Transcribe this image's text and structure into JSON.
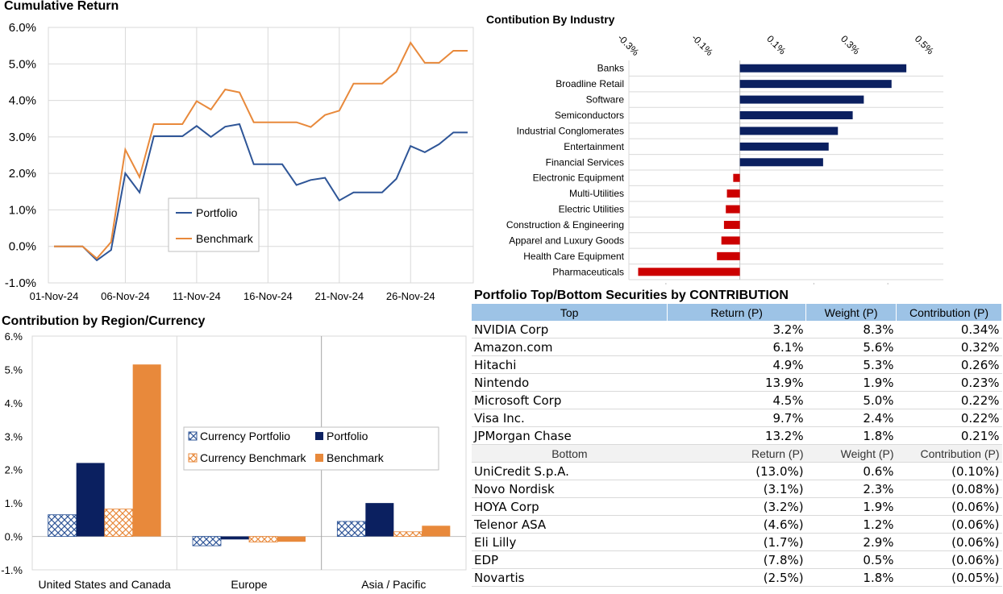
{
  "cumulative": {
    "title": "Cumulative Return",
    "chart_data": {
      "type": "line",
      "title": "Cumulative Return",
      "ylim": [
        -1.0,
        6.0
      ],
      "y_ticks": [
        "6.0%",
        "5.0%",
        "4.0%",
        "3.0%",
        "2.0%",
        "1.0%",
        "0.0%",
        "-1.0%"
      ],
      "x_ticks": [
        "01-Nov-24",
        "06-Nov-24",
        "11-Nov-24",
        "16-Nov-24",
        "21-Nov-24",
        "26-Nov-24"
      ],
      "legend_position": "center-left",
      "grid": true,
      "series": [
        {
          "name": "Portfolio",
          "color": "#2e5597",
          "values": [
            0.0,
            0.0,
            0.0,
            -0.38,
            -0.1,
            2.0,
            1.48,
            3.02,
            3.02,
            3.02,
            3.3,
            3.0,
            3.28,
            3.35,
            2.25,
            2.25,
            2.25,
            1.68,
            1.82,
            1.88,
            1.26,
            1.48,
            1.48,
            1.48,
            1.85,
            2.75,
            2.58,
            2.8,
            3.12,
            3.12
          ]
        },
        {
          "name": "Benchmark",
          "color": "#e8893b",
          "values": [
            0.0,
            0.0,
            0.0,
            -0.33,
            0.12,
            2.65,
            1.9,
            3.35,
            3.35,
            3.35,
            3.98,
            3.75,
            4.3,
            4.22,
            3.4,
            3.4,
            3.4,
            3.4,
            3.27,
            3.6,
            3.72,
            4.46,
            4.46,
            4.46,
            4.78,
            5.58,
            5.03,
            5.03,
            5.36,
            5.36
          ]
        }
      ]
    }
  },
  "industry": {
    "title": "Contibution By Industry",
    "chart_data": {
      "type": "bar",
      "orientation": "horizontal",
      "xlim": [
        -0.3,
        0.55
      ],
      "x_ticks": [
        "-0.3%",
        "-0.1%",
        "0.1%",
        "0.3%",
        "0.5%"
      ],
      "categories": [
        "Banks",
        "Broadline Retail",
        "Software",
        "Semiconductors",
        "Industrial Conglomerates",
        "Entertainment",
        "Financial Services",
        "Electronic Equipment",
        "Multi-Utilities",
        "Electric Utilities",
        "Construction & Engineering",
        "Apparel and Luxury Goods",
        "Health Care Equipment",
        "Pharmaceuticals"
      ],
      "values": [
        0.45,
        0.41,
        0.335,
        0.305,
        0.265,
        0.24,
        0.225,
        -0.018,
        -0.035,
        -0.038,
        -0.043,
        -0.05,
        -0.062,
        -0.275
      ],
      "positive_color": "#0b2060",
      "negative_color": "#cc0000"
    }
  },
  "region": {
    "title": "Contribution by Region/Currency",
    "chart_data": {
      "type": "bar",
      "ylim": [
        -1.0,
        6.0
      ],
      "y_ticks": [
        "6.%",
        "5.%",
        "4.%",
        "3.%",
        "2.%",
        "1.%",
        "0.%",
        "-1.%"
      ],
      "categories": [
        "United States and Canada",
        "Europe",
        "Asia / Pacific"
      ],
      "legend_position": "center",
      "series": [
        {
          "name": "Currency Portfolio",
          "color": "#2e5597",
          "pattern": "crosshatch",
          "values": [
            0.65,
            -0.28,
            0.45
          ]
        },
        {
          "name": "Portfolio",
          "color": "#0b2060",
          "pattern": "solid",
          "values": [
            2.2,
            -0.09,
            1.0
          ]
        },
        {
          "name": "Currency Benchmark",
          "color": "#e8893b",
          "pattern": "crosshatch",
          "values": [
            0.82,
            -0.17,
            0.14
          ]
        },
        {
          "name": "Benchmark",
          "color": "#e8893b",
          "pattern": "solid",
          "values": [
            5.15,
            -0.16,
            0.32
          ]
        }
      ]
    }
  },
  "securities": {
    "title": "Portfolio Top/Bottom Securities by CONTRIBUTION",
    "top_header": [
      "Top",
      "Return (P)",
      "Weight (P)",
      "Contribution (P)"
    ],
    "top_rows": [
      [
        "NVIDIA Corp",
        "3.2%",
        "8.3%",
        "0.34%"
      ],
      [
        "Amazon.com",
        "6.1%",
        "5.6%",
        "0.32%"
      ],
      [
        "Hitachi",
        "4.9%",
        "5.3%",
        "0.26%"
      ],
      [
        "Nintendo",
        "13.9%",
        "1.9%",
        "0.23%"
      ],
      [
        "Microsoft Corp",
        "4.5%",
        "5.0%",
        "0.22%"
      ],
      [
        "Visa Inc.",
        "9.7%",
        "2.4%",
        "0.22%"
      ],
      [
        "JPMorgan Chase",
        "13.2%",
        "1.8%",
        "0.21%"
      ]
    ],
    "bottom_header": [
      "Bottom",
      "Return (P)",
      "Weight (P)",
      "Contribution (P)"
    ],
    "bottom_rows": [
      [
        "UniCredit S.p.A.",
        "(13.0%)",
        "0.6%",
        "(0.10%)"
      ],
      [
        "Novo Nordisk",
        "(3.1%)",
        "2.3%",
        "(0.08%)"
      ],
      [
        "HOYA Corp",
        "(3.2%)",
        "1.9%",
        "(0.06%)"
      ],
      [
        "Telenor ASA",
        "(4.6%)",
        "1.2%",
        "(0.06%)"
      ],
      [
        "Eli Lilly",
        "(1.7%)",
        "2.9%",
        "(0.06%)"
      ],
      [
        "EDP",
        "(7.8%)",
        "0.5%",
        "(0.06%)"
      ],
      [
        "Novartis",
        "(2.5%)",
        "1.8%",
        "(0.05%)"
      ]
    ]
  }
}
